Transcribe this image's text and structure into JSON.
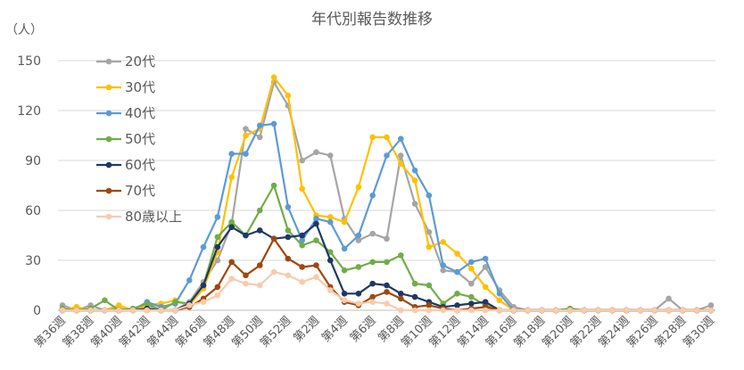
{
  "chart_data": {
    "type": "line",
    "title": "年代別報告数推移",
    "ylabel": "（人）",
    "ylim": [
      0,
      150
    ],
    "yticks": [
      "0",
      "30",
      "60",
      "90",
      "120",
      "150"
    ],
    "grid": true,
    "legend_position": "top-left",
    "categories": [
      "第36週",
      "第37週",
      "第38週",
      "第39週",
      "第40週",
      "第41週",
      "第42週",
      "第43週",
      "第44週",
      "第45週",
      "第46週",
      "第47週",
      "第48週",
      "第49週",
      "第50週",
      "第51週",
      "第52週",
      "第1週",
      "第2週",
      "第3週",
      "第4週",
      "第5週",
      "第6週",
      "第7週",
      "第8週",
      "第9週",
      "第10週",
      "第11週",
      "第12週",
      "第13週",
      "第14週",
      "第15週",
      "第16週",
      "第17週",
      "第18週",
      "第19週",
      "第20週",
      "第21週",
      "第22週",
      "第23週",
      "第24週",
      "第25週",
      "第26週",
      "第27週",
      "第28週",
      "第29週",
      "第30週"
    ],
    "x_tick_labels": [
      "第36週",
      "第38週",
      "第40週",
      "第42週",
      "第44週",
      "第46週",
      "第48週",
      "第50週",
      "第52週",
      "第2週",
      "第4週",
      "第6週",
      "第8週",
      "第10週",
      "第12週",
      "第14週",
      "第16週",
      "第18週",
      "第20週",
      "第22週",
      "第24週",
      "第26週",
      "第28週",
      "第30週"
    ],
    "series": [
      {
        "name": "20代",
        "color": "#a5a5a5",
        "values": [
          3,
          0,
          3,
          0,
          1,
          0,
          3,
          0,
          0,
          5,
          17,
          30,
          52,
          109,
          104,
          137,
          123,
          90,
          95,
          93,
          55,
          42,
          46,
          43,
          93,
          64,
          47,
          24,
          23,
          16,
          26,
          12,
          2,
          0,
          0,
          0,
          0,
          0,
          0,
          0,
          0,
          0,
          0,
          7,
          0,
          0,
          3
        ]
      },
      {
        "name": "30代",
        "color": "#ffc000",
        "values": [
          0,
          2,
          0,
          0,
          3,
          0,
          3,
          4,
          6,
          3,
          13,
          35,
          80,
          105,
          109,
          140,
          129,
          73,
          57,
          56,
          53,
          74,
          104,
          104,
          88,
          78,
          38,
          41,
          34,
          25,
          14,
          6,
          0,
          0,
          0,
          0,
          0,
          0,
          0,
          0,
          0,
          0,
          0,
          0,
          0,
          0,
          0
        ]
      },
      {
        "name": "40代",
        "color": "#5b9bd5",
        "values": [
          0,
          0,
          0,
          0,
          0,
          0,
          5,
          2,
          4,
          18,
          38,
          56,
          94,
          94,
          111,
          112,
          62,
          42,
          55,
          53,
          37,
          45,
          69,
          93,
          103,
          84,
          69,
          27,
          23,
          29,
          31,
          10,
          0,
          0,
          0,
          0,
          0,
          0,
          0,
          0,
          0,
          0,
          0,
          0,
          0,
          0,
          0
        ]
      },
      {
        "name": "50代",
        "color": "#70ad47",
        "values": [
          1,
          0,
          1,
          6,
          0,
          1,
          4,
          0,
          5,
          4,
          15,
          44,
          53,
          45,
          60,
          75,
          48,
          39,
          42,
          35,
          24,
          26,
          29,
          29,
          33,
          16,
          15,
          4,
          10,
          8,
          3,
          0,
          0,
          0,
          0,
          0,
          1,
          0,
          0,
          0,
          0,
          0,
          0,
          0,
          0,
          0,
          0
        ]
      },
      {
        "name": "60代",
        "color": "#1f3864",
        "values": [
          0,
          0,
          0,
          0,
          0,
          0,
          1,
          0,
          0,
          4,
          15,
          38,
          50,
          45,
          48,
          43,
          44,
          45,
          52,
          30,
          10,
          10,
          16,
          15,
          10,
          8,
          5,
          2,
          3,
          4,
          5,
          0,
          0,
          0,
          0,
          0,
          0,
          0,
          0,
          0,
          0,
          0,
          0,
          0,
          0,
          0,
          0
        ]
      },
      {
        "name": "70代",
        "color": "#9e480e",
        "values": [
          0,
          0,
          0,
          0,
          0,
          0,
          0,
          0,
          0,
          2,
          7,
          14,
          29,
          21,
          27,
          43,
          31,
          26,
          27,
          14,
          5,
          3,
          8,
          11,
          7,
          2,
          3,
          1,
          0,
          1,
          2,
          0,
          0,
          0,
          0,
          0,
          0,
          0,
          0,
          0,
          0,
          0,
          0,
          0,
          0,
          0,
          0
        ]
      },
      {
        "name": "80歳以上",
        "color": "#f8cbad",
        "values": [
          0,
          0,
          0,
          0,
          0,
          0,
          0,
          0,
          0,
          3,
          5,
          9,
          19,
          16,
          15,
          23,
          21,
          17,
          20,
          12,
          6,
          4,
          5,
          4,
          0,
          0,
          0,
          0,
          0,
          0,
          0,
          0,
          0,
          0,
          0,
          0,
          0,
          0,
          0,
          0,
          0,
          0,
          0,
          0,
          0,
          0,
          0
        ]
      }
    ]
  }
}
